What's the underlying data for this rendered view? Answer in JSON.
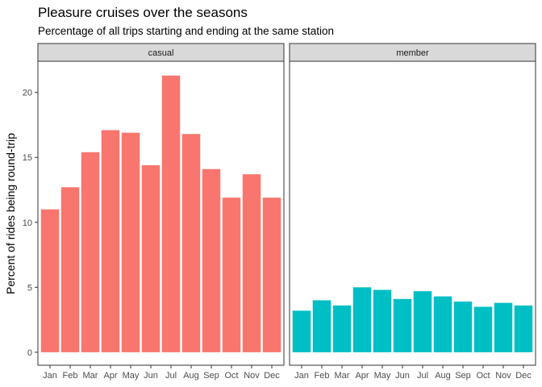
{
  "chart_data": {
    "type": "bar",
    "title": "Pleasure cruises over the seasons",
    "subtitle": "Percentage of all trips starting and ending at the same station",
    "xlabel": "",
    "ylabel": "Percent of rides being round-trip",
    "ylim": [
      -1,
      22.4
    ],
    "yticks": [
      0,
      5,
      10,
      15,
      20
    ],
    "grid": false,
    "legend": "none",
    "categories": [
      "Jan",
      "Feb",
      "Mar",
      "Apr",
      "May",
      "Jun",
      "Jul",
      "Aug",
      "Sep",
      "Oct",
      "Nov",
      "Dec"
    ],
    "facets": [
      {
        "label": "casual",
        "color": "#F8766D",
        "values": [
          11.0,
          12.7,
          15.4,
          17.1,
          16.9,
          14.4,
          21.3,
          16.8,
          14.1,
          11.9,
          13.7,
          11.9
        ]
      },
      {
        "label": "member",
        "color": "#00BFC4",
        "values": [
          3.2,
          4.0,
          3.6,
          5.0,
          4.8,
          4.1,
          4.7,
          4.3,
          3.9,
          3.5,
          3.8,
          3.6
        ]
      }
    ]
  }
}
